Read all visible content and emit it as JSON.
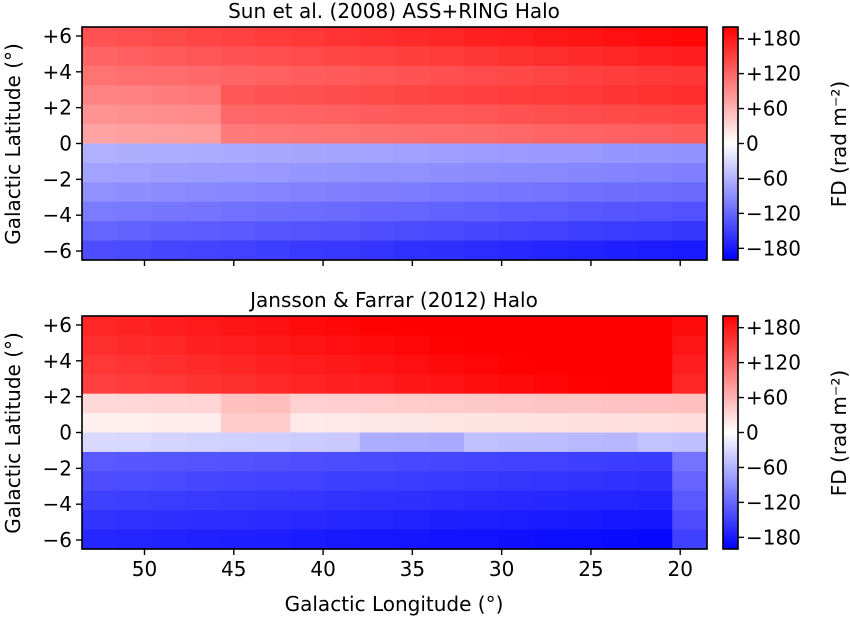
{
  "chart_data": [
    {
      "type": "heatmap",
      "title": "Sun et al. (2008) ASS+RING Halo",
      "xlabel": "",
      "ylabel": "Galactic Latitude (°)",
      "xlim": [
        53.5,
        18.5
      ],
      "ylim": [
        -6.5,
        6.5
      ],
      "x_ticks": [
        50,
        45,
        40,
        35,
        30,
        25,
        20
      ],
      "x_tick_labels": [
        "",
        "",
        "",
        "",
        "",
        "",
        ""
      ],
      "y_ticks": [
        6,
        4,
        2,
        0,
        -2,
        -4,
        -6
      ],
      "y_tick_labels": [
        "+6",
        "+4",
        "+2",
        "0",
        "−2",
        "−4",
        "−6"
      ],
      "longitude_centers": [
        53,
        51,
        49,
        47,
        45,
        43,
        41,
        39,
        37,
        35,
        33,
        31,
        29,
        27,
        25,
        23,
        21,
        19
      ],
      "latitude_centers": [
        6,
        5,
        4,
        3,
        2,
        1,
        -1,
        -2,
        -3,
        -4,
        -5,
        -6
      ],
      "grid": false,
      "colorbar": {
        "label": "FD (rad m⁻²)",
        "range": [
          -200,
          200
        ],
        "ticks": [
          180,
          120,
          60,
          0,
          -60,
          -120,
          -180
        ],
        "tick_labels": [
          "+180",
          "+120",
          "+60",
          "0",
          "−60",
          "−120",
          "−180"
        ],
        "colormap": "bwr"
      }
    },
    {
      "type": "heatmap",
      "title": "Jansson & Farrar (2012) Halo",
      "xlabel": "Galactic Longitude (°)",
      "ylabel": "Galactic Latitude (°)",
      "xlim": [
        53.5,
        18.5
      ],
      "ylim": [
        -6.5,
        6.5
      ],
      "x_ticks": [
        50,
        45,
        40,
        35,
        30,
        25,
        20
      ],
      "x_tick_labels": [
        "50",
        "45",
        "40",
        "35",
        "30",
        "25",
        "20"
      ],
      "y_ticks": [
        6,
        4,
        2,
        0,
        -2,
        -4,
        -6
      ],
      "y_tick_labels": [
        "+6",
        "+4",
        "+2",
        "0",
        "−2",
        "−4",
        "−6"
      ],
      "longitude_centers": [
        53,
        51,
        49,
        47,
        45,
        43,
        41,
        39,
        37,
        35,
        33,
        31,
        29,
        27,
        25,
        23,
        21,
        19
      ],
      "latitude_centers": [
        6,
        5,
        4,
        3,
        2,
        1,
        -1,
        -2,
        -3,
        -4,
        -5,
        -6
      ],
      "grid": false,
      "colorbar": {
        "label": "FD (rad m⁻²)",
        "range": [
          -200,
          200
        ],
        "ticks": [
          180,
          120,
          60,
          0,
          -60,
          -120,
          -180
        ],
        "tick_labels": [
          "+180",
          "+120",
          "+60",
          "0",
          "−60",
          "−120",
          "−180"
        ],
        "colormap": "bwr"
      }
    }
  ]
}
